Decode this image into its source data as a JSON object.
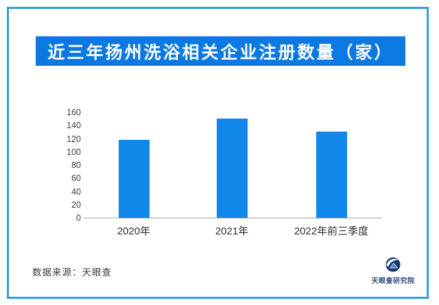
{
  "title": "近三年扬州洗浴相关企业注册数量（家）",
  "source": {
    "label": "数据来源：天眼查"
  },
  "logo": {
    "label": "天眼查研究院"
  },
  "colors": {
    "bar": "#1187ea",
    "banner": "#0b79e1",
    "frame": "#2ba2da",
    "axis_line": "#d0d0d0",
    "tick_text": "#3b3b3b",
    "label_text": "#2f2f2f",
    "logo_navy": "#123a72",
    "logo_light_blue": "#5c87bd"
  },
  "chart_data": {
    "type": "bar",
    "categories": [
      "2020年",
      "2021年",
      "2022年前三季度"
    ],
    "values": [
      118,
      151,
      131
    ],
    "title": "近三年扬州洗浴相关企业注册数量（家）",
    "xlabel": "",
    "ylabel": "",
    "ylim": [
      0,
      160
    ],
    "yticks": [
      0,
      20,
      40,
      60,
      80,
      100,
      120,
      140,
      160
    ],
    "grid": false,
    "legend": false,
    "bar_color": "#1187ea"
  }
}
